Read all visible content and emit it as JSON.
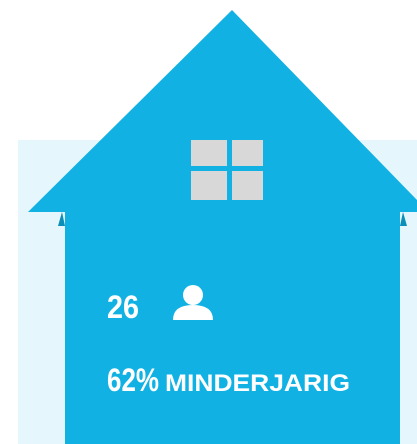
{
  "house": {
    "count": "26",
    "share": "62%",
    "share_label": "MINDERJARIG"
  }
}
